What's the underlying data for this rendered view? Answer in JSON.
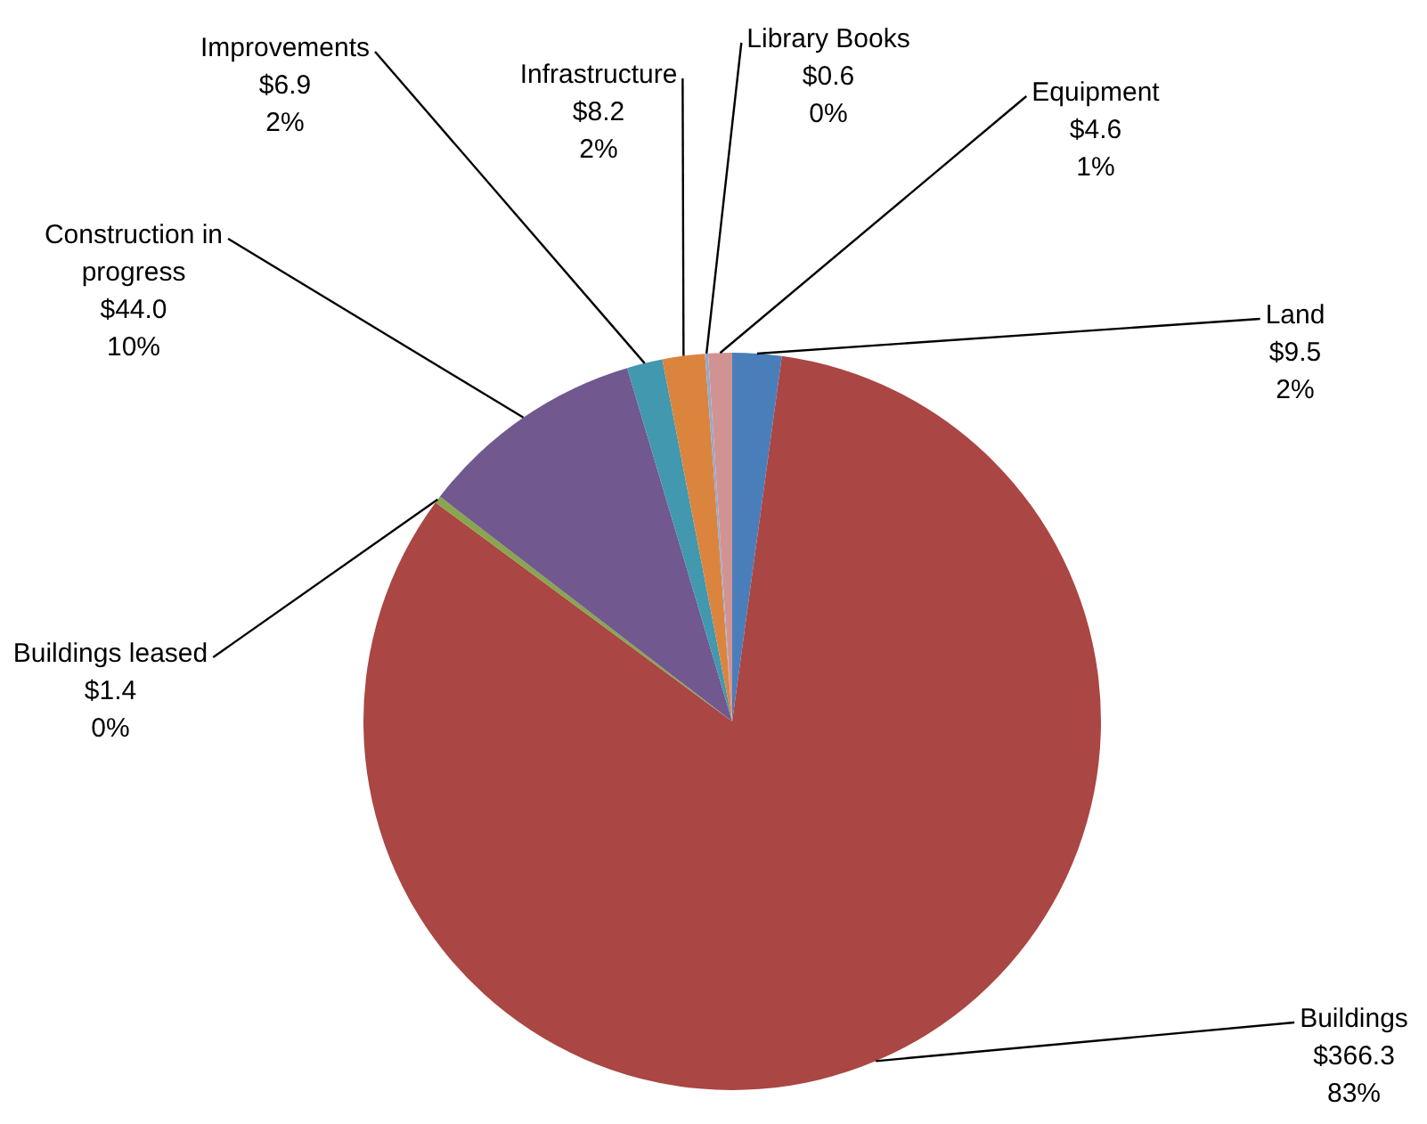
{
  "chart_data": {
    "type": "pie",
    "categories": [
      "Land",
      "Buildings",
      "Buildings leased",
      "Construction in progress",
      "Improvements",
      "Infrastructure",
      "Library Books",
      "Equipment"
    ],
    "values": [
      9.5,
      366.3,
      1.4,
      44.0,
      6.9,
      8.2,
      0.6,
      4.6
    ],
    "value_labels": [
      "$9.5\n2%",
      "$366.3\n83%",
      "$1.4\n0%",
      "$44.0\n10%",
      "$6.9\n2%",
      "$8.2\n2%",
      "$0.6\n0%",
      "$4.6\n1%"
    ],
    "colors": [
      "#4a7ebb",
      "#aa4643",
      "#89a54e",
      "#71588f",
      "#4198af",
      "#db843d",
      "#93a9cf",
      "#d19392"
    ],
    "legend": false
  }
}
